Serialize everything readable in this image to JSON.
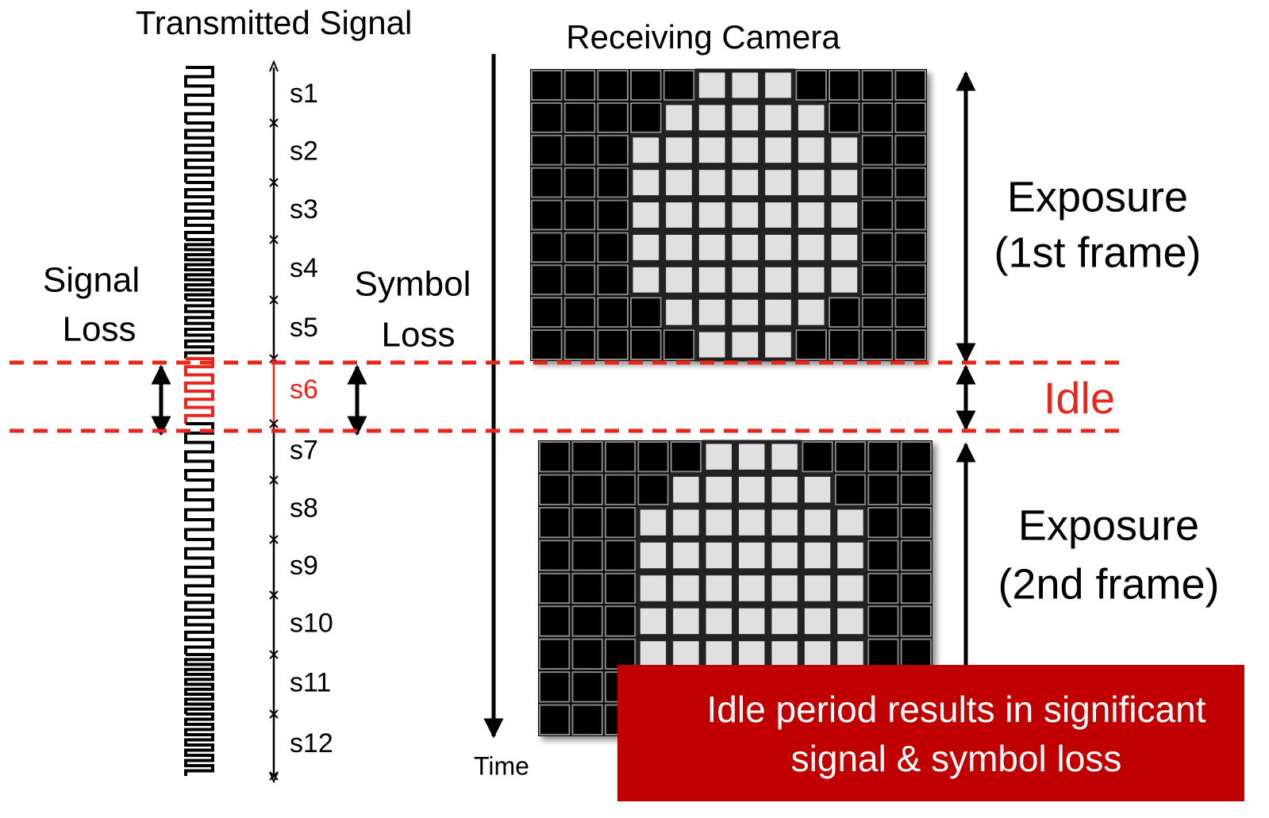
{
  "title_left": "Transmitted Signal",
  "title_right": "Receiving Camera",
  "symbols": [
    "s1",
    "s2",
    "s3",
    "s4",
    "s5",
    "s6",
    "s7",
    "s8",
    "s9",
    "s10",
    "s11",
    "s12"
  ],
  "signal_loss": [
    "Signal",
    "Loss"
  ],
  "symbol_loss": [
    "Symbol",
    "Loss"
  ],
  "exposure_1": [
    "Exposure",
    "(1st frame)"
  ],
  "idle": "Idle",
  "exposure_2": [
    "Exposure",
    "(2nd frame)"
  ],
  "time": "Time",
  "callout": [
    "Idle period results in significant",
    "signal & symbol loss"
  ]
}
